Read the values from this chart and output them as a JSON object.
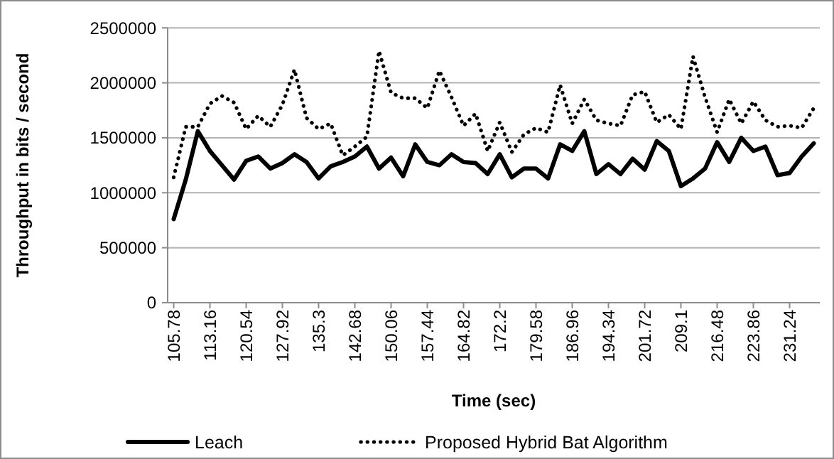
{
  "chart_data": {
    "type": "line",
    "xlabel": "Time (sec)",
    "ylabel": "Throughput in bits / second",
    "categories": [
      "105.78",
      null,
      null,
      "113.16",
      null,
      null,
      "120.54",
      null,
      null,
      "127.92",
      null,
      null,
      "135.3",
      null,
      null,
      "142.68",
      null,
      null,
      "150.06",
      null,
      null,
      "157.44",
      null,
      null,
      "164.82",
      null,
      null,
      "172.2",
      null,
      null,
      "179.58",
      null,
      null,
      "186.96",
      null,
      null,
      "194.34",
      null,
      null,
      "201.72",
      null,
      null,
      "209.1",
      null,
      null,
      "216.48",
      null,
      null,
      "223.86",
      null,
      null,
      "231.24",
      null,
      null
    ],
    "series": [
      {
        "name": "Leach",
        "color": "#000000",
        "line_style": "solid",
        "values": [
          760000,
          1120000,
          1560000,
          1380000,
          1250000,
          1120000,
          1290000,
          1330000,
          1220000,
          1270000,
          1350000,
          1280000,
          1130000,
          1240000,
          1280000,
          1330000,
          1420000,
          1220000,
          1320000,
          1150000,
          1440000,
          1280000,
          1250000,
          1350000,
          1280000,
          1270000,
          1170000,
          1350000,
          1140000,
          1220000,
          1220000,
          1130000,
          1440000,
          1380000,
          1560000,
          1170000,
          1260000,
          1170000,
          1310000,
          1210000,
          1470000,
          1380000,
          1060000,
          1130000,
          1220000,
          1460000,
          1280000,
          1500000,
          1380000,
          1420000,
          1160000,
          1180000,
          1330000,
          1450000
        ]
      },
      {
        "name": "Proposed Hybrid Bat Algorithm",
        "color": "#000000",
        "line_style": "dotted",
        "values": [
          1140000,
          1600000,
          1600000,
          1810000,
          1880000,
          1820000,
          1580000,
          1700000,
          1600000,
          1800000,
          2120000,
          1680000,
          1580000,
          1630000,
          1340000,
          1420000,
          1510000,
          2290000,
          1910000,
          1860000,
          1860000,
          1770000,
          2110000,
          1870000,
          1610000,
          1720000,
          1380000,
          1640000,
          1370000,
          1530000,
          1590000,
          1550000,
          1980000,
          1630000,
          1850000,
          1660000,
          1630000,
          1610000,
          1890000,
          1920000,
          1640000,
          1710000,
          1580000,
          2240000,
          1870000,
          1550000,
          1850000,
          1630000,
          1830000,
          1660000,
          1600000,
          1610000,
          1590000,
          1770000
        ]
      }
    ],
    "ylim": [
      0,
      2500000
    ],
    "yticks": [
      0,
      500000,
      1000000,
      1500000,
      2000000,
      2500000
    ],
    "grid": "y",
    "legend": "bottom",
    "marker": "none"
  }
}
